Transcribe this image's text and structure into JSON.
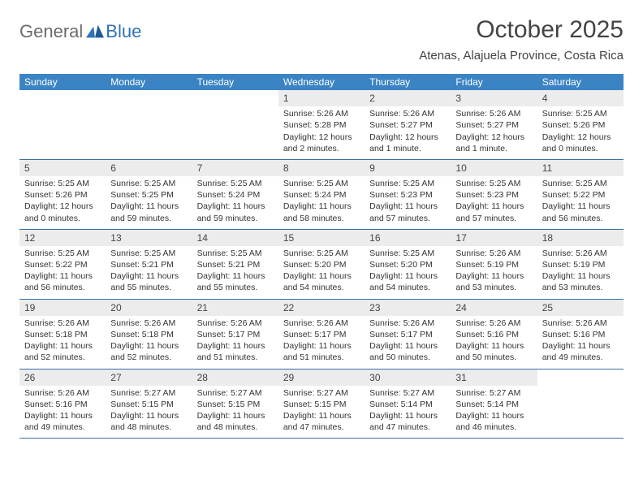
{
  "brand": {
    "text_a": "General",
    "text_b": "Blue"
  },
  "title": "October 2025",
  "location": "Atenas, Alajuela Province, Costa Rica",
  "colors": {
    "header_bg": "#3a84c4",
    "divider": "#3a6fa3",
    "daynum_bg": "#ececec",
    "text": "#333333",
    "brand_gray": "#6b6b6b",
    "brand_blue": "#2f72b8"
  },
  "weekdays": [
    "Sunday",
    "Monday",
    "Tuesday",
    "Wednesday",
    "Thursday",
    "Friday",
    "Saturday"
  ],
  "weeks": [
    [
      {
        "n": "",
        "sr": "",
        "ss": "",
        "dl": ""
      },
      {
        "n": "",
        "sr": "",
        "ss": "",
        "dl": ""
      },
      {
        "n": "",
        "sr": "",
        "ss": "",
        "dl": ""
      },
      {
        "n": "1",
        "sr": "Sunrise: 5:26 AM",
        "ss": "Sunset: 5:28 PM",
        "dl": "Daylight: 12 hours and 2 minutes."
      },
      {
        "n": "2",
        "sr": "Sunrise: 5:26 AM",
        "ss": "Sunset: 5:27 PM",
        "dl": "Daylight: 12 hours and 1 minute."
      },
      {
        "n": "3",
        "sr": "Sunrise: 5:26 AM",
        "ss": "Sunset: 5:27 PM",
        "dl": "Daylight: 12 hours and 1 minute."
      },
      {
        "n": "4",
        "sr": "Sunrise: 5:25 AM",
        "ss": "Sunset: 5:26 PM",
        "dl": "Daylight: 12 hours and 0 minutes."
      }
    ],
    [
      {
        "n": "5",
        "sr": "Sunrise: 5:25 AM",
        "ss": "Sunset: 5:26 PM",
        "dl": "Daylight: 12 hours and 0 minutes."
      },
      {
        "n": "6",
        "sr": "Sunrise: 5:25 AM",
        "ss": "Sunset: 5:25 PM",
        "dl": "Daylight: 11 hours and 59 minutes."
      },
      {
        "n": "7",
        "sr": "Sunrise: 5:25 AM",
        "ss": "Sunset: 5:24 PM",
        "dl": "Daylight: 11 hours and 59 minutes."
      },
      {
        "n": "8",
        "sr": "Sunrise: 5:25 AM",
        "ss": "Sunset: 5:24 PM",
        "dl": "Daylight: 11 hours and 58 minutes."
      },
      {
        "n": "9",
        "sr": "Sunrise: 5:25 AM",
        "ss": "Sunset: 5:23 PM",
        "dl": "Daylight: 11 hours and 57 minutes."
      },
      {
        "n": "10",
        "sr": "Sunrise: 5:25 AM",
        "ss": "Sunset: 5:23 PM",
        "dl": "Daylight: 11 hours and 57 minutes."
      },
      {
        "n": "11",
        "sr": "Sunrise: 5:25 AM",
        "ss": "Sunset: 5:22 PM",
        "dl": "Daylight: 11 hours and 56 minutes."
      }
    ],
    [
      {
        "n": "12",
        "sr": "Sunrise: 5:25 AM",
        "ss": "Sunset: 5:22 PM",
        "dl": "Daylight: 11 hours and 56 minutes."
      },
      {
        "n": "13",
        "sr": "Sunrise: 5:25 AM",
        "ss": "Sunset: 5:21 PM",
        "dl": "Daylight: 11 hours and 55 minutes."
      },
      {
        "n": "14",
        "sr": "Sunrise: 5:25 AM",
        "ss": "Sunset: 5:21 PM",
        "dl": "Daylight: 11 hours and 55 minutes."
      },
      {
        "n": "15",
        "sr": "Sunrise: 5:25 AM",
        "ss": "Sunset: 5:20 PM",
        "dl": "Daylight: 11 hours and 54 minutes."
      },
      {
        "n": "16",
        "sr": "Sunrise: 5:25 AM",
        "ss": "Sunset: 5:20 PM",
        "dl": "Daylight: 11 hours and 54 minutes."
      },
      {
        "n": "17",
        "sr": "Sunrise: 5:26 AM",
        "ss": "Sunset: 5:19 PM",
        "dl": "Daylight: 11 hours and 53 minutes."
      },
      {
        "n": "18",
        "sr": "Sunrise: 5:26 AM",
        "ss": "Sunset: 5:19 PM",
        "dl": "Daylight: 11 hours and 53 minutes."
      }
    ],
    [
      {
        "n": "19",
        "sr": "Sunrise: 5:26 AM",
        "ss": "Sunset: 5:18 PM",
        "dl": "Daylight: 11 hours and 52 minutes."
      },
      {
        "n": "20",
        "sr": "Sunrise: 5:26 AM",
        "ss": "Sunset: 5:18 PM",
        "dl": "Daylight: 11 hours and 52 minutes."
      },
      {
        "n": "21",
        "sr": "Sunrise: 5:26 AM",
        "ss": "Sunset: 5:17 PM",
        "dl": "Daylight: 11 hours and 51 minutes."
      },
      {
        "n": "22",
        "sr": "Sunrise: 5:26 AM",
        "ss": "Sunset: 5:17 PM",
        "dl": "Daylight: 11 hours and 51 minutes."
      },
      {
        "n": "23",
        "sr": "Sunrise: 5:26 AM",
        "ss": "Sunset: 5:17 PM",
        "dl": "Daylight: 11 hours and 50 minutes."
      },
      {
        "n": "24",
        "sr": "Sunrise: 5:26 AM",
        "ss": "Sunset: 5:16 PM",
        "dl": "Daylight: 11 hours and 50 minutes."
      },
      {
        "n": "25",
        "sr": "Sunrise: 5:26 AM",
        "ss": "Sunset: 5:16 PM",
        "dl": "Daylight: 11 hours and 49 minutes."
      }
    ],
    [
      {
        "n": "26",
        "sr": "Sunrise: 5:26 AM",
        "ss": "Sunset: 5:16 PM",
        "dl": "Daylight: 11 hours and 49 minutes."
      },
      {
        "n": "27",
        "sr": "Sunrise: 5:27 AM",
        "ss": "Sunset: 5:15 PM",
        "dl": "Daylight: 11 hours and 48 minutes."
      },
      {
        "n": "28",
        "sr": "Sunrise: 5:27 AM",
        "ss": "Sunset: 5:15 PM",
        "dl": "Daylight: 11 hours and 48 minutes."
      },
      {
        "n": "29",
        "sr": "Sunrise: 5:27 AM",
        "ss": "Sunset: 5:15 PM",
        "dl": "Daylight: 11 hours and 47 minutes."
      },
      {
        "n": "30",
        "sr": "Sunrise: 5:27 AM",
        "ss": "Sunset: 5:14 PM",
        "dl": "Daylight: 11 hours and 47 minutes."
      },
      {
        "n": "31",
        "sr": "Sunrise: 5:27 AM",
        "ss": "Sunset: 5:14 PM",
        "dl": "Daylight: 11 hours and 46 minutes."
      },
      {
        "n": "",
        "sr": "",
        "ss": "",
        "dl": ""
      }
    ]
  ]
}
